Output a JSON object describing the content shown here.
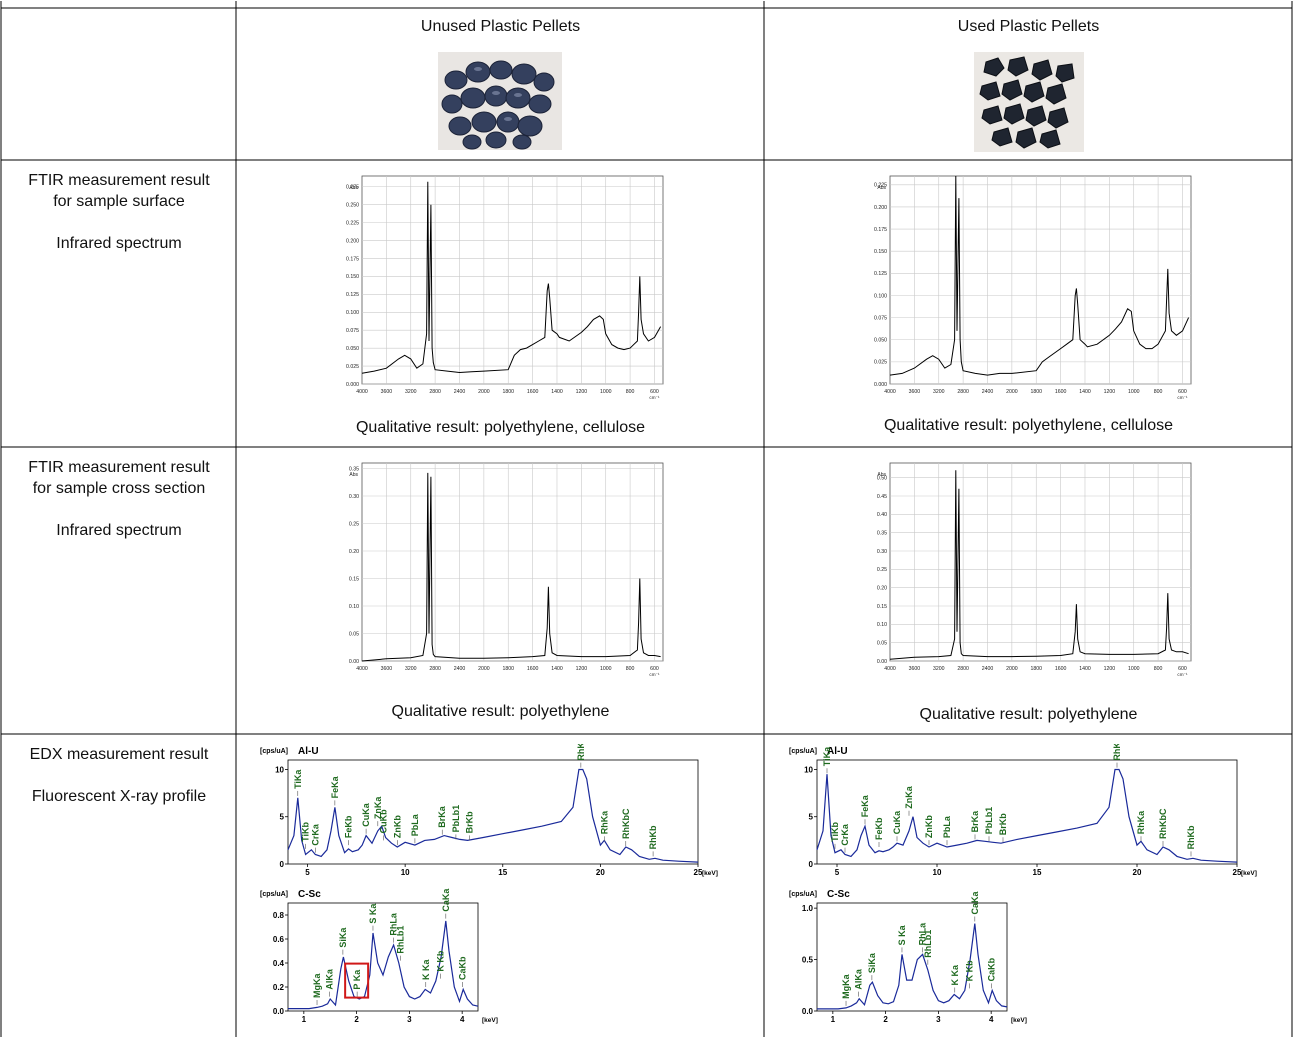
{
  "columns": [
    "Unused Plastic Pellets",
    "Used Plastic Pellets"
  ],
  "rows": [
    {
      "label_lines": [
        "FTIR measurement result",
        "for sample surface",
        "",
        "Infrared spectrum"
      ]
    },
    {
      "label_lines": [
        "FTIR measurement result",
        "for sample cross section",
        "",
        "Infrared spectrum"
      ]
    },
    {
      "label_lines": [
        "EDX measurement result",
        "",
        "Fluorescent X-ray profile"
      ]
    }
  ],
  "results": {
    "surface_unused": "Qualitative result: polyethylene, cellulose",
    "surface_used": "Qualitative result: polyethylene, cellulose",
    "cross_unused": "Qualitative result: polyethylene",
    "cross_used": "Qualitative result: polyethylene"
  },
  "ir_x_ticks": [
    "4000",
    "3600",
    "3200",
    "2800",
    "2400",
    "2000",
    "1800",
    "1600",
    "1400",
    "1200",
    "1000",
    "800",
    "600"
  ],
  "ir_x_unit": "cm⁻¹",
  "ir_y_unit": "Abs",
  "chart_data": [
    {
      "type": "line",
      "id": "ir_surface_unused",
      "y_ticks": [
        "0.000",
        "0.025",
        "0.050",
        "0.075",
        "0.100",
        "0.125",
        "0.150",
        "0.175",
        "0.200",
        "0.225",
        "0.250",
        "0.275"
      ],
      "ylim": [
        0,
        0.29
      ],
      "x": [
        4000,
        3800,
        3600,
        3400,
        3300,
        3200,
        3100,
        3000,
        2940,
        2920,
        2900,
        2870,
        2850,
        2830,
        2800,
        2600,
        2400,
        2200,
        2000,
        1800,
        1750,
        1700,
        1650,
        1600,
        1550,
        1500,
        1480,
        1470,
        1460,
        1440,
        1400,
        1380,
        1300,
        1200,
        1150,
        1100,
        1050,
        1020,
        1000,
        950,
        900,
        850,
        800,
        740,
        730,
        720,
        710,
        690,
        650,
        600,
        550
      ],
      "y": [
        0.015,
        0.018,
        0.022,
        0.035,
        0.04,
        0.035,
        0.022,
        0.028,
        0.07,
        0.282,
        0.06,
        0.25,
        0.05,
        0.03,
        0.02,
        0.018,
        0.016,
        0.017,
        0.018,
        0.02,
        0.04,
        0.048,
        0.05,
        0.055,
        0.06,
        0.065,
        0.13,
        0.14,
        0.12,
        0.075,
        0.07,
        0.065,
        0.06,
        0.072,
        0.08,
        0.09,
        0.095,
        0.09,
        0.07,
        0.055,
        0.05,
        0.048,
        0.05,
        0.06,
        0.1,
        0.15,
        0.09,
        0.07,
        0.06,
        0.065,
        0.08
      ]
    },
    {
      "type": "line",
      "id": "ir_surface_used",
      "y_ticks": [
        "0.000",
        "0.025",
        "0.050",
        "0.075",
        "0.100",
        "0.125",
        "0.150",
        "0.175",
        "0.200",
        "0.225"
      ],
      "ylim": [
        0,
        0.235
      ],
      "x": [
        4000,
        3800,
        3600,
        3400,
        3300,
        3200,
        3100,
        3000,
        2940,
        2920,
        2900,
        2870,
        2850,
        2830,
        2800,
        2600,
        2400,
        2200,
        2000,
        1800,
        1750,
        1700,
        1650,
        1600,
        1550,
        1500,
        1480,
        1470,
        1460,
        1440,
        1400,
        1380,
        1300,
        1200,
        1150,
        1100,
        1050,
        1020,
        1000,
        950,
        900,
        850,
        800,
        740,
        730,
        720,
        710,
        690,
        650,
        600,
        550
      ],
      "y": [
        0.01,
        0.012,
        0.018,
        0.028,
        0.032,
        0.028,
        0.018,
        0.022,
        0.05,
        0.235,
        0.06,
        0.21,
        0.05,
        0.025,
        0.015,
        0.012,
        0.01,
        0.012,
        0.012,
        0.015,
        0.025,
        0.03,
        0.035,
        0.04,
        0.045,
        0.05,
        0.1,
        0.108,
        0.09,
        0.05,
        0.045,
        0.042,
        0.045,
        0.055,
        0.062,
        0.07,
        0.085,
        0.082,
        0.06,
        0.045,
        0.04,
        0.04,
        0.045,
        0.06,
        0.095,
        0.13,
        0.08,
        0.06,
        0.055,
        0.06,
        0.075
      ]
    },
    {
      "type": "line",
      "id": "ir_cross_unused",
      "y_ticks": [
        "0.00",
        "0.05",
        "0.10",
        "0.15",
        "0.20",
        "0.25",
        "0.30",
        "0.35"
      ],
      "ylim": [
        0,
        0.36
      ],
      "x": [
        4000,
        3600,
        3200,
        3000,
        2940,
        2920,
        2900,
        2870,
        2850,
        2830,
        2800,
        2400,
        2000,
        1800,
        1600,
        1500,
        1480,
        1470,
        1460,
        1440,
        1400,
        1200,
        1000,
        800,
        740,
        730,
        720,
        710,
        690,
        650,
        600,
        550
      ],
      "y": [
        0.0,
        0.004,
        0.006,
        0.01,
        0.05,
        0.342,
        0.05,
        0.335,
        0.03,
        0.012,
        0.008,
        0.005,
        0.005,
        0.006,
        0.008,
        0.01,
        0.06,
        0.135,
        0.05,
        0.015,
        0.01,
        0.008,
        0.008,
        0.01,
        0.02,
        0.07,
        0.15,
        0.04,
        0.015,
        0.01,
        0.01,
        0.008
      ]
    },
    {
      "type": "line",
      "id": "ir_cross_used",
      "y_ticks": [
        "0.00",
        "0.05",
        "0.10",
        "0.15",
        "0.20",
        "0.25",
        "0.30",
        "0.35",
        "0.40",
        "0.45",
        "0.50"
      ],
      "ylim": [
        0,
        0.54
      ],
      "x": [
        4000,
        3600,
        3200,
        3000,
        2940,
        2920,
        2900,
        2870,
        2850,
        2830,
        2800,
        2400,
        2000,
        1800,
        1600,
        1500,
        1480,
        1470,
        1460,
        1440,
        1400,
        1200,
        1000,
        800,
        740,
        730,
        720,
        710,
        690,
        650,
        600,
        550
      ],
      "y": [
        0.005,
        0.01,
        0.012,
        0.015,
        0.06,
        0.52,
        0.08,
        0.47,
        0.05,
        0.02,
        0.015,
        0.012,
        0.012,
        0.013,
        0.015,
        0.02,
        0.08,
        0.155,
        0.06,
        0.025,
        0.02,
        0.018,
        0.018,
        0.02,
        0.03,
        0.09,
        0.185,
        0.06,
        0.03,
        0.025,
        0.025,
        0.02
      ]
    },
    {
      "type": "line",
      "id": "edx_alu_unused",
      "title": "Al-U",
      "y_unit": "[cps/uA]",
      "x_unit": "[keV]",
      "y_ticks": [
        "0",
        "5",
        "10"
      ],
      "x_ticks": [
        "5",
        "10",
        "15",
        "20",
        "25"
      ],
      "xlim": [
        4,
        25
      ],
      "ylim": [
        0,
        11
      ],
      "x": [
        4,
        4.3,
        4.5,
        4.7,
        4.9,
        5.2,
        5.4,
        5.7,
        6.0,
        6.2,
        6.4,
        6.6,
        6.9,
        7.1,
        7.3,
        7.6,
        7.8,
        8.0,
        8.3,
        8.6,
        8.8,
        9.0,
        9.3,
        9.6,
        10,
        10.5,
        11,
        11.5,
        12,
        12.4,
        12.8,
        13.2,
        14,
        15,
        16,
        17,
        18,
        18.6,
        18.9,
        19.1,
        19.3,
        19.6,
        20,
        20.2,
        20.5,
        21,
        21.3,
        21.6,
        22,
        22.5,
        22.8,
        23.2,
        24,
        25
      ],
      "y": [
        1.5,
        3,
        7,
        2.5,
        1,
        1.5,
        1,
        0.8,
        1.5,
        3.5,
        6,
        3,
        1.2,
        1.6,
        1.3,
        1.5,
        2,
        3,
        2.2,
        3.5,
        4,
        2.8,
        2.2,
        1.8,
        2.3,
        2,
        2.5,
        2.6,
        3,
        2.8,
        2.6,
        2.5,
        2.8,
        3.2,
        3.6,
        4,
        4.5,
        6,
        10,
        10,
        9,
        5,
        2,
        2.5,
        1.5,
        1,
        1.8,
        1.5,
        0.8,
        0.5,
        0.6,
        0.4,
        0.3,
        0.2
      ]
    },
    {
      "type": "line",
      "id": "edx_alu_used",
      "title": "Al-U",
      "y_unit": "[cps/uA]",
      "x_unit": "[keV]",
      "y_ticks": [
        "0",
        "5",
        "10"
      ],
      "x_ticks": [
        "5",
        "10",
        "15",
        "20",
        "25"
      ],
      "xlim": [
        4,
        25
      ],
      "ylim": [
        0,
        11
      ],
      "x": [
        4,
        4.3,
        4.5,
        4.7,
        4.9,
        5.2,
        5.4,
        5.7,
        6.0,
        6.2,
        6.4,
        6.6,
        6.9,
        7.1,
        7.3,
        7.6,
        7.8,
        8.0,
        8.3,
        8.6,
        8.8,
        9.0,
        9.3,
        9.6,
        10,
        10.5,
        11,
        11.5,
        12,
        12.4,
        12.8,
        13.2,
        14,
        15,
        16,
        17,
        18,
        18.6,
        18.9,
        19.1,
        19.3,
        19.6,
        20,
        20.2,
        20.5,
        21,
        21.3,
        21.6,
        22,
        22.5,
        22.8,
        23.2,
        24,
        25
      ],
      "y": [
        1.5,
        3.5,
        9.5,
        3,
        1.2,
        1.5,
        1,
        0.8,
        1.5,
        3,
        4,
        2,
        1.2,
        1.4,
        1.3,
        1.5,
        1.8,
        2.2,
        2,
        3.5,
        5,
        2.8,
        2.2,
        1.8,
        2.2,
        1.8,
        2,
        2.2,
        2.5,
        2.4,
        2.3,
        2.2,
        2.6,
        3,
        3.4,
        3.8,
        4.3,
        6,
        10,
        10,
        9,
        5,
        2,
        2.4,
        1.5,
        1,
        1.8,
        1.5,
        0.8,
        0.5,
        0.6,
        0.4,
        0.3,
        0.2
      ]
    },
    {
      "type": "line",
      "id": "edx_csc_unused",
      "title": "C-Sc",
      "y_unit": "[cps/uA]",
      "x_unit": "[keV]",
      "y_ticks": [
        "0.0",
        "0.2",
        "0.4",
        "0.6",
        "0.8"
      ],
      "x_ticks": [
        "1",
        "2",
        "3",
        "4"
      ],
      "xlim": [
        0.7,
        4.3
      ],
      "ylim": [
        0,
        0.9
      ],
      "x": [
        0.7,
        0.9,
        1.1,
        1.25,
        1.35,
        1.45,
        1.5,
        1.6,
        1.7,
        1.75,
        1.85,
        1.95,
        2.05,
        2.15,
        2.25,
        2.31,
        2.4,
        2.5,
        2.6,
        2.7,
        2.8,
        2.9,
        3.0,
        3.1,
        3.2,
        3.3,
        3.4,
        3.5,
        3.6,
        3.69,
        3.75,
        3.85,
        3.95,
        4.02,
        4.1,
        4.2,
        4.3
      ],
      "y": [
        0.02,
        0.02,
        0.02,
        0.03,
        0.04,
        0.06,
        0.1,
        0.05,
        0.35,
        0.45,
        0.25,
        0.12,
        0.1,
        0.12,
        0.3,
        0.65,
        0.4,
        0.3,
        0.45,
        0.55,
        0.4,
        0.2,
        0.12,
        0.1,
        0.12,
        0.18,
        0.15,
        0.25,
        0.45,
        0.75,
        0.5,
        0.2,
        0.08,
        0.18,
        0.1,
        0.05,
        0.04
      ]
    },
    {
      "type": "line",
      "id": "edx_csc_used",
      "title": "C-Sc",
      "y_unit": "[cps/uA]",
      "x_unit": "[keV]",
      "y_ticks": [
        "0.0",
        "0.5",
        "1.0"
      ],
      "x_ticks": [
        "1",
        "2",
        "3",
        "4"
      ],
      "xlim": [
        0.7,
        4.3
      ],
      "ylim": [
        0,
        1.05
      ],
      "x": [
        0.7,
        0.9,
        1.1,
        1.25,
        1.35,
        1.45,
        1.5,
        1.6,
        1.7,
        1.75,
        1.85,
        1.95,
        2.05,
        2.15,
        2.25,
        2.31,
        2.4,
        2.5,
        2.6,
        2.7,
        2.8,
        2.9,
        3.0,
        3.1,
        3.2,
        3.3,
        3.4,
        3.5,
        3.6,
        3.69,
        3.75,
        3.85,
        3.95,
        4.02,
        4.1,
        4.2,
        4.3
      ],
      "y": [
        0.02,
        0.02,
        0.02,
        0.03,
        0.05,
        0.08,
        0.12,
        0.06,
        0.25,
        0.28,
        0.15,
        0.08,
        0.07,
        0.09,
        0.25,
        0.55,
        0.3,
        0.3,
        0.5,
        0.55,
        0.4,
        0.2,
        0.1,
        0.08,
        0.1,
        0.16,
        0.12,
        0.2,
        0.5,
        0.85,
        0.55,
        0.2,
        0.08,
        0.2,
        0.1,
        0.05,
        0.04
      ]
    }
  ],
  "edx_labels": {
    "alu_unused": [
      {
        "t": "TiKa",
        "x": 4.5,
        "y": 7.2
      },
      {
        "t": "TiKb",
        "x": 4.9,
        "y": 1.6
      },
      {
        "t": "CrKa",
        "x": 5.4,
        "y": 1.2
      },
      {
        "t": "FeKa",
        "x": 6.4,
        "y": 6.2
      },
      {
        "t": "FeKb",
        "x": 7.1,
        "y": 2.0
      },
      {
        "t": "CuKa",
        "x": 8.0,
        "y": 3.2
      },
      {
        "t": "ZnKa",
        "x": 8.6,
        "y": 4.0
      },
      {
        "t": "CuKb",
        "x": 8.9,
        "y": 2.5
      },
      {
        "t": "ZnKb",
        "x": 9.6,
        "y": 2.0
      },
      {
        "t": "PbLa",
        "x": 10.5,
        "y": 2.2
      },
      {
        "t": "BrKa",
        "x": 11.9,
        "y": 3.1
      },
      {
        "t": "PbLb1",
        "x": 12.6,
        "y": 2.6
      },
      {
        "t": "BrKb",
        "x": 13.3,
        "y": 2.5
      },
      {
        "t": "RhKaC",
        "x": 19.0,
        "y": 10.2
      },
      {
        "t": "RhKa",
        "x": 20.2,
        "y": 2.4
      },
      {
        "t": "RhKbC",
        "x": 21.3,
        "y": 1.9
      },
      {
        "t": "RhKb",
        "x": 22.7,
        "y": 0.8
      }
    ],
    "alu_used": [
      {
        "t": "TiKa",
        "x": 4.5,
        "y": 9.6
      },
      {
        "t": "TiKb",
        "x": 4.9,
        "y": 1.6
      },
      {
        "t": "CrKa",
        "x": 5.4,
        "y": 1.2
      },
      {
        "t": "FeKa",
        "x": 6.4,
        "y": 4.2
      },
      {
        "t": "FeKb",
        "x": 7.1,
        "y": 1.8
      },
      {
        "t": "CuKa",
        "x": 8.0,
        "y": 2.4
      },
      {
        "t": "ZnKa",
        "x": 8.6,
        "y": 5.1
      },
      {
        "t": "ZnKb",
        "x": 9.6,
        "y": 2.0
      },
      {
        "t": "PbLa",
        "x": 10.5,
        "y": 2.0
      },
      {
        "t": "BrKa",
        "x": 11.9,
        "y": 2.6
      },
      {
        "t": "PbLb1",
        "x": 12.6,
        "y": 2.4
      },
      {
        "t": "BrKb",
        "x": 13.3,
        "y": 2.3
      },
      {
        "t": "RhKaC",
        "x": 19.0,
        "y": 10.2
      },
      {
        "t": "RhKa",
        "x": 20.2,
        "y": 2.4
      },
      {
        "t": "RhKbC",
        "x": 21.3,
        "y": 1.9
      },
      {
        "t": "RhKb",
        "x": 22.7,
        "y": 0.8
      }
    ],
    "csc_unused": [
      {
        "t": "MgKa",
        "x": 1.25,
        "y": 0.05
      },
      {
        "t": "AlKa",
        "x": 1.49,
        "y": 0.12
      },
      {
        "t": "SiKa",
        "x": 1.74,
        "y": 0.47
      },
      {
        "t": "P Ka",
        "x": 2.01,
        "y": 0.12
      },
      {
        "t": "S Ka",
        "x": 2.31,
        "y": 0.67
      },
      {
        "t": "RhLa",
        "x": 2.7,
        "y": 0.57
      },
      {
        "t": "RhLb1",
        "x": 2.83,
        "y": 0.42
      },
      {
        "t": "K Ka",
        "x": 3.31,
        "y": 0.2
      },
      {
        "t": "K Kb",
        "x": 3.59,
        "y": 0.27
      },
      {
        "t": "CaKa",
        "x": 3.69,
        "y": 0.77
      },
      {
        "t": "CaKb",
        "x": 4.01,
        "y": 0.2
      }
    ],
    "csc_used": [
      {
        "t": "MgKa",
        "x": 1.25,
        "y": 0.05
      },
      {
        "t": "AlKa",
        "x": 1.49,
        "y": 0.14
      },
      {
        "t": "SiKa",
        "x": 1.74,
        "y": 0.3
      },
      {
        "t": "S Ka",
        "x": 2.31,
        "y": 0.57
      },
      {
        "t": "RhLa",
        "x": 2.7,
        "y": 0.57
      },
      {
        "t": "RhLb1",
        "x": 2.8,
        "y": 0.45
      },
      {
        "t": "K Ka",
        "x": 3.31,
        "y": 0.18
      },
      {
        "t": "K Kb",
        "x": 3.59,
        "y": 0.22
      },
      {
        "t": "CaKa",
        "x": 3.69,
        "y": 0.87
      },
      {
        "t": "CaKb",
        "x": 4.01,
        "y": 0.22
      }
    ]
  },
  "highlight_label": "P Ka"
}
